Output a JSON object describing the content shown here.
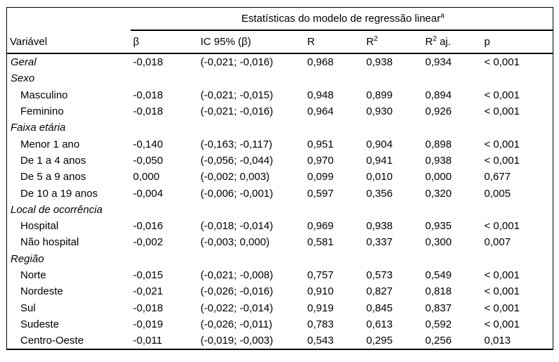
{
  "table": {
    "spanner_title": "Estatísticas do modelo de regressão linear",
    "spanner_footnote_mark": "a",
    "row_header_label": "Variável",
    "columns": [
      {
        "text": "β",
        "sup": "",
        "suffix": ""
      },
      {
        "text": "IC 95% (β)",
        "sup": "",
        "suffix": ""
      },
      {
        "text": "R",
        "sup": "",
        "suffix": ""
      },
      {
        "text": "R",
        "sup": "2",
        "suffix": ""
      },
      {
        "text": "R",
        "sup": "2",
        "suffix": " aj."
      },
      {
        "text": "p",
        "sup": "",
        "suffix": ""
      }
    ],
    "rows": [
      {
        "type": "category",
        "label": "Geral",
        "values": [
          "-0,018",
          "(-0,021; -0,016)",
          "0,968",
          "0,938",
          "0,934",
          "< 0,001"
        ]
      },
      {
        "type": "category",
        "label": "Sexo",
        "values": [
          "",
          "",
          "",
          "",
          "",
          ""
        ]
      },
      {
        "type": "item",
        "label": "Masculino",
        "values": [
          "-0,018",
          "(-0,021; -0,015)",
          "0,948",
          "0,899",
          "0,894",
          "< 0,001"
        ]
      },
      {
        "type": "item",
        "label": "Feminino",
        "values": [
          "-0,018",
          "(-0,021; -0,016)",
          "0,964",
          "0,930",
          "0,926",
          "< 0,001"
        ]
      },
      {
        "type": "category",
        "label": "Faixa etária",
        "values": [
          "",
          "",
          "",
          "",
          "",
          ""
        ]
      },
      {
        "type": "item",
        "label": "Menor 1 ano",
        "values": [
          "-0,140",
          "(-0,163; -0,117)",
          "0,951",
          "0,904",
          "0,898",
          "< 0,001"
        ]
      },
      {
        "type": "item",
        "label": "De 1 a 4 anos",
        "values": [
          "-0,050",
          "(-0,056; -0,044)",
          "0,970",
          "0,941",
          "0,938",
          "< 0,001"
        ]
      },
      {
        "type": "item",
        "label": "De 5 a 9 anos",
        "values": [
          "0,000",
          "(-0,002; 0,003)",
          "0,099",
          "0,010",
          "0,000",
          "0,677"
        ]
      },
      {
        "type": "item",
        "label": "De 10 a 19 anos",
        "values": [
          "-0,004",
          "(-0,006; -0,001)",
          "0,597",
          "0,356",
          "0,320",
          "0,005"
        ]
      },
      {
        "type": "category",
        "label": "Local de ocorrência",
        "values": [
          "",
          "",
          "",
          "",
          "",
          ""
        ]
      },
      {
        "type": "item",
        "label": "Hospital",
        "values": [
          "-0,016",
          "(-0,018; -0,014)",
          "0,969",
          "0,938",
          "0,935",
          "< 0,001"
        ]
      },
      {
        "type": "item",
        "label": "Não hospital",
        "values": [
          "-0,002",
          "(-0,003; 0,000)",
          "0,581",
          "0,337",
          "0,300",
          "0,007"
        ]
      },
      {
        "type": "category",
        "label": "Região",
        "values": [
          "",
          "",
          "",
          "",
          "",
          ""
        ]
      },
      {
        "type": "item",
        "label": "Norte",
        "values": [
          "-0,015",
          "(-0,021; -0,008)",
          "0,757",
          "0,573",
          "0,549",
          "< 0,001"
        ]
      },
      {
        "type": "item",
        "label": "Nordeste",
        "values": [
          "-0,021",
          "(-0,026; -0,016)",
          "0,910",
          "0,827",
          "0,818",
          "< 0,001"
        ]
      },
      {
        "type": "item",
        "label": "Sul",
        "values": [
          "-0,018",
          "(-0,022; -0,014)",
          "0,919",
          "0,845",
          "0,837",
          "< 0,001"
        ]
      },
      {
        "type": "item",
        "label": "Sudeste",
        "values": [
          "-0,019",
          "(-0,026; -0,011)",
          "0,783",
          "0,613",
          "0,592",
          "< 0,001"
        ]
      },
      {
        "type": "item",
        "label": "Centro-Oeste",
        "values": [
          "-0,011",
          "(-0,019; -0,003)",
          "0,543",
          "0,295",
          "0,256",
          "0,013"
        ]
      }
    ]
  },
  "chart_data": {
    "type": "table",
    "title": "Estatísticas do modelo de regressão linear",
    "columns": [
      "Variável",
      "β",
      "IC 95% (β)",
      "R",
      "R2",
      "R2 aj.",
      "p"
    ]
  }
}
